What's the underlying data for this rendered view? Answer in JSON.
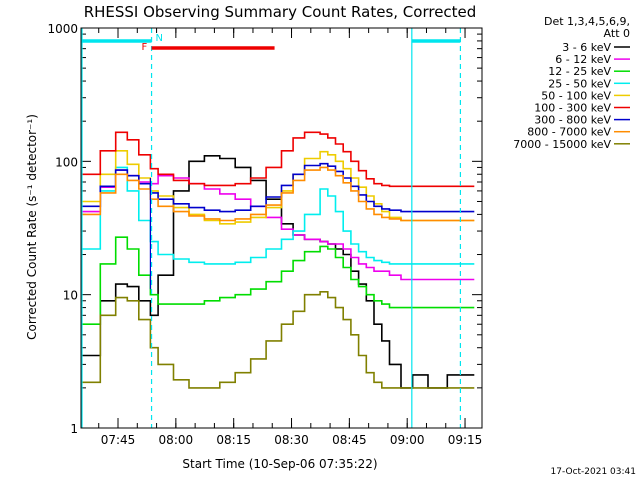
{
  "colors": {
    "background": "#ffffff",
    "axis": "#000000",
    "marker_line": "#00e5ee",
    "attenuator_bar": "#00e5ee",
    "flare_bar": "#ee0000",
    "flare_marker": "#0000cc"
  },
  "chart_data": {
    "type": "line",
    "title": "RHESSI Observing Summary Count Rates, Corrected",
    "xlabel": "Start Time (10-Sep-06 07:35:22)",
    "ylabel": "Corrected Count Rate (s⁻¹ detector⁻¹)",
    "y_scale": "log",
    "ylim": [
      1,
      1000
    ],
    "x_unit": "minutes after 07:35:22 UT",
    "xlim": [
      0,
      104
    ],
    "x_ticks": [
      {
        "label": "07:45",
        "value": 9.6
      },
      {
        "label": "08:00",
        "value": 24.6
      },
      {
        "label": "08:15",
        "value": 39.6
      },
      {
        "label": "08:30",
        "value": 54.6
      },
      {
        "label": "08:45",
        "value": 69.6
      },
      {
        "label": "09:00",
        "value": 84.6
      },
      {
        "label": "09:15",
        "value": 99.6
      }
    ],
    "y_ticks": [
      {
        "label": "1",
        "value": 1
      },
      {
        "label": "10",
        "value": 10
      },
      {
        "label": "100",
        "value": 100
      },
      {
        "label": "1000",
        "value": 1000
      }
    ],
    "legend": {
      "position": "right",
      "header": [
        "Det 1,3,4,5,6,9,",
        "Att 0"
      ]
    },
    "markers": {
      "vertical_lines": [
        {
          "x": 18.3,
          "style": "dashed"
        },
        {
          "x": 85.8,
          "style": "solid"
        },
        {
          "x": 98.4,
          "style": "dashed"
        }
      ],
      "bars": [
        {
          "label": "N",
          "x_start": 0,
          "x_end": 18.3,
          "color": "#00e5ee"
        },
        {
          "label": "",
          "x_start": 85.8,
          "x_end": 98.4,
          "color": "#00e5ee"
        },
        {
          "label": "F",
          "x_start": 18.3,
          "x_end": 50.2,
          "color": "#ee0000"
        }
      ],
      "flare_line_x": 18.0
    },
    "x": [
      0,
      5,
      9,
      12,
      15,
      18,
      20,
      24,
      28,
      32,
      36,
      40,
      44,
      48,
      52,
      55,
      58,
      62,
      64,
      66,
      68,
      70,
      72,
      74,
      76,
      78,
      80,
      83,
      86,
      90,
      95,
      98,
      102
    ],
    "series": [
      {
        "name": "3 - 6 keV",
        "color": "#000000",
        "values": [
          3.5,
          9,
          12,
          11.5,
          9,
          7,
          14,
          60,
          100,
          110,
          105,
          90,
          72,
          52,
          34,
          28,
          26,
          25,
          24,
          22,
          20,
          15,
          12,
          9,
          6,
          4.5,
          3,
          2,
          2.5,
          2,
          2.5,
          2.5,
          2.5
        ]
      },
      {
        "name": "6 - 12 keV",
        "color": "#ee00ee",
        "values": [
          42,
          64,
          86,
          78,
          70,
          68,
          78,
          75,
          68,
          62,
          57,
          52,
          46,
          38,
          31,
          28,
          26,
          25,
          24,
          24,
          22,
          19,
          17,
          16,
          15,
          15,
          14,
          13,
          13,
          13,
          13,
          13,
          13
        ]
      },
      {
        "name": "12 - 25 keV",
        "color": "#00dd00",
        "values": [
          6,
          17,
          27,
          22,
          14,
          10,
          8.5,
          8.5,
          8.5,
          9,
          9.5,
          10,
          11,
          12.5,
          15,
          18,
          21,
          23,
          22,
          19,
          16,
          13,
          11.5,
          10,
          9,
          8.5,
          8,
          8,
          8,
          8,
          8,
          8,
          8
        ]
      },
      {
        "name": "25 - 50 keV",
        "color": "#00eeee",
        "values": [
          22,
          60,
          90,
          60,
          36,
          25,
          20,
          18.5,
          17.5,
          17,
          17,
          17.5,
          19,
          22,
          26,
          30,
          40,
          62,
          55,
          42,
          30,
          24,
          21,
          19,
          18,
          17.5,
          17,
          17,
          17,
          17,
          17,
          17,
          17
        ]
      },
      {
        "name": "50 - 100 keV",
        "color": "#eecc00",
        "values": [
          50,
          80,
          120,
          95,
          75,
          60,
          55,
          45,
          40,
          36,
          34,
          35,
          38,
          45,
          60,
          80,
          105,
          118,
          112,
          100,
          88,
          75,
          64,
          55,
          48,
          42,
          38,
          36,
          36,
          36,
          36,
          36,
          36
        ]
      },
      {
        "name": "100 - 300 keV",
        "color": "#ee0000",
        "values": [
          80,
          120,
          165,
          145,
          112,
          88,
          80,
          72,
          68,
          66,
          66,
          68,
          75,
          90,
          120,
          150,
          165,
          160,
          150,
          135,
          118,
          100,
          85,
          74,
          68,
          66,
          65,
          65,
          65,
          65,
          65,
          65,
          65
        ]
      },
      {
        "name": "300 - 800 keV",
        "color": "#0000cc",
        "values": [
          46,
          65,
          86,
          78,
          68,
          58,
          52,
          48,
          45,
          43,
          42,
          43,
          46,
          54,
          66,
          80,
          93,
          96,
          92,
          84,
          75,
          65,
          56,
          50,
          46,
          44,
          43,
          42,
          42,
          42,
          42,
          42,
          42
        ]
      },
      {
        "name": "800 - 7000 keV",
        "color": "#ff8c00",
        "values": [
          40,
          58,
          80,
          72,
          62,
          52,
          46,
          42,
          39,
          37,
          36,
          37,
          40,
          47,
          58,
          72,
          86,
          90,
          86,
          78,
          69,
          60,
          50,
          44,
          40,
          38,
          37,
          36,
          36,
          36,
          36,
          36,
          36
        ]
      },
      {
        "name": "7000 - 15000 keV",
        "color": "#808000",
        "values": [
          2.2,
          7,
          9.5,
          9,
          6.5,
          4,
          3,
          2.3,
          2.0,
          2.0,
          2.2,
          2.6,
          3.3,
          4.5,
          6,
          7.5,
          10,
          10.5,
          9.5,
          8,
          6.5,
          5,
          3.5,
          2.6,
          2.2,
          2.0,
          2.0,
          2.0,
          2.0,
          2.0,
          2.0,
          2.0,
          2.0
        ]
      }
    ]
  },
  "footer": {
    "timestamp": "17-Oct-2021 03:41"
  }
}
